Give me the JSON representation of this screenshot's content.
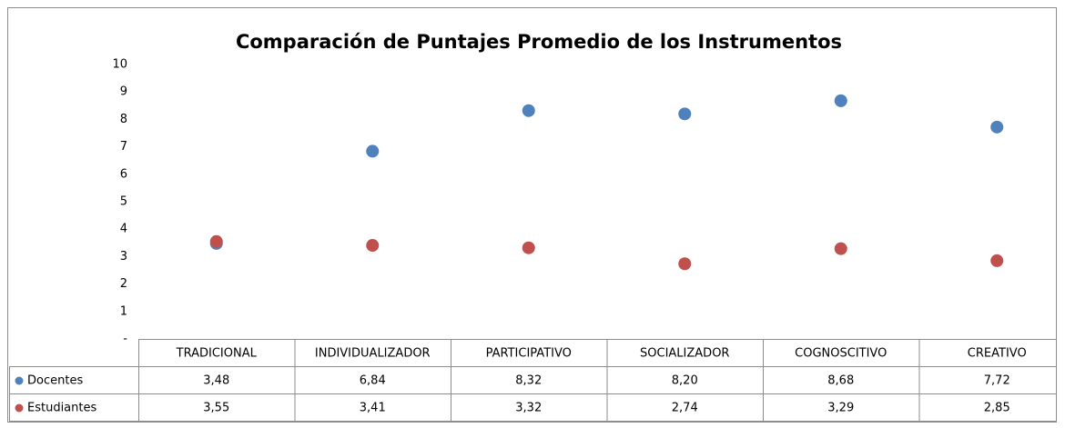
{
  "chart_data": {
    "type": "dot",
    "title": "Comparación de Puntajes Promedio de los Instrumentos",
    "categories": [
      "TRADICIONAL",
      "INDIVIDUALIZADOR",
      "PARTICIPATIVO",
      "SOCIALIZADOR",
      "COGNOSCITIVO",
      "CREATIVO"
    ],
    "series": [
      {
        "name": "Docentes",
        "color": "#4f81bd",
        "values": [
          3.48,
          6.84,
          8.32,
          8.2,
          8.68,
          7.72
        ],
        "value_labels": [
          "3,48",
          "6,84",
          "8,32",
          "8,20",
          "8,68",
          "7,72"
        ]
      },
      {
        "name": "Estudiantes",
        "color": "#c0504d",
        "values": [
          3.55,
          3.41,
          3.32,
          2.74,
          3.29,
          2.85
        ],
        "value_labels": [
          "3,55",
          "3,41",
          "3,32",
          "2,74",
          "3,29",
          "2,85"
        ]
      }
    ],
    "ylim": [
      0,
      10
    ],
    "yticks": [
      {
        "value": 0,
        "label": "-"
      },
      1,
      2,
      3,
      4,
      5,
      6,
      7,
      8,
      9,
      10
    ],
    "grid": false
  }
}
